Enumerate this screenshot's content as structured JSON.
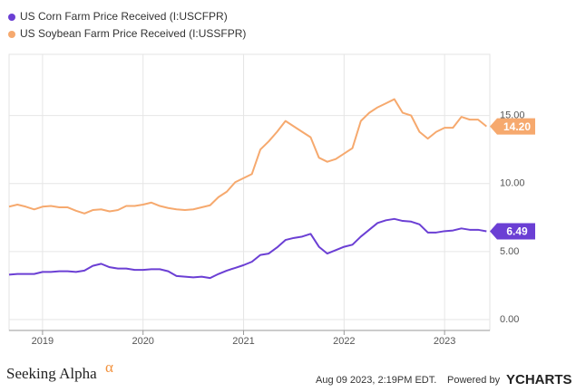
{
  "chart_data": {
    "type": "line",
    "categories_note_free": null,
    "x": [
      2018.667,
      2018.75,
      2018.833,
      2018.917,
      2019,
      2019.083,
      2019.167,
      2019.25,
      2019.333,
      2019.417,
      2019.5,
      2019.583,
      2019.667,
      2019.75,
      2019.833,
      2019.917,
      2020,
      2020.083,
      2020.167,
      2020.25,
      2020.333,
      2020.417,
      2020.5,
      2020.583,
      2020.667,
      2020.75,
      2020.833,
      2020.917,
      2021,
      2021.083,
      2021.167,
      2021.25,
      2021.333,
      2021.417,
      2021.5,
      2021.583,
      2021.667,
      2021.75,
      2021.833,
      2021.917,
      2022,
      2022.083,
      2022.167,
      2022.25,
      2022.333,
      2022.417,
      2022.5,
      2022.583,
      2022.667,
      2022.75,
      2022.833,
      2022.917,
      2023,
      2023.083,
      2023.167,
      2023.25,
      2023.333,
      2023.417
    ],
    "series": [
      {
        "name": "US Corn Farm Price Received (I:USCFPR)",
        "color": "#6b3fd4",
        "values": [
          3.3,
          3.35,
          3.35,
          3.35,
          3.5,
          3.5,
          3.55,
          3.55,
          3.5,
          3.6,
          3.95,
          4.1,
          3.85,
          3.75,
          3.75,
          3.65,
          3.65,
          3.7,
          3.7,
          3.55,
          3.2,
          3.15,
          3.1,
          3.15,
          3.05,
          3.35,
          3.6,
          3.8,
          4.0,
          4.25,
          4.75,
          4.85,
          5.3,
          5.85,
          6.0,
          6.1,
          6.3,
          5.35,
          4.85,
          5.1,
          5.35,
          5.5,
          6.1,
          6.6,
          7.1,
          7.3,
          7.4,
          7.25,
          7.2,
          7.0,
          6.4,
          6.4,
          6.5,
          6.55,
          6.7,
          6.6,
          6.6,
          6.49
        ],
        "value_labels": [
          null,
          null,
          null,
          null,
          null,
          null,
          null,
          null,
          null,
          null,
          null,
          null,
          null,
          null,
          null,
          null,
          null,
          null,
          null,
          null,
          null,
          null,
          null,
          null,
          null,
          null,
          null,
          null,
          null,
          null,
          null,
          null,
          null,
          null,
          null,
          null,
          null,
          null,
          null,
          null,
          null,
          null,
          null,
          null,
          null,
          null,
          null,
          null,
          null,
          null,
          null,
          null,
          null,
          null,
          null,
          null,
          null,
          "6.49"
        ]
      },
      {
        "name": "US Soybean Farm Price Received (I:USSFPR)",
        "color": "#f6a96e",
        "values": [
          8.3,
          8.45,
          8.3,
          8.1,
          8.3,
          8.35,
          8.25,
          8.25,
          8.0,
          7.8,
          8.05,
          8.1,
          7.95,
          8.05,
          8.35,
          8.35,
          8.45,
          8.6,
          8.35,
          8.2,
          8.1,
          8.05,
          8.1,
          8.25,
          8.4,
          9.0,
          9.4,
          10.1,
          10.4,
          10.7,
          12.5,
          13.1,
          13.8,
          14.6,
          14.2,
          13.8,
          13.4,
          11.9,
          11.6,
          11.8,
          12.2,
          12.6,
          14.6,
          15.2,
          15.6,
          15.9,
          16.2,
          15.2,
          15.0,
          13.8,
          13.3,
          13.8,
          14.1,
          14.1,
          14.9,
          14.7,
          14.7,
          14.2
        ],
        "value_labels": [
          null,
          null,
          null,
          null,
          null,
          null,
          null,
          null,
          null,
          null,
          null,
          null,
          null,
          null,
          null,
          null,
          null,
          null,
          null,
          null,
          null,
          null,
          null,
          null,
          null,
          null,
          null,
          null,
          null,
          null,
          null,
          null,
          null,
          null,
          null,
          null,
          null,
          null,
          null,
          null,
          null,
          null,
          null,
          null,
          null,
          null,
          null,
          null,
          null,
          null,
          null,
          null,
          null,
          null,
          null,
          null,
          null,
          "14.20"
        ]
      }
    ],
    "xlim": [
      2018.667,
      2023.45
    ],
    "xticks": [
      2019,
      2020,
      2021,
      2022,
      2023
    ],
    "ylim": [
      -0.8,
      19.5
    ],
    "yticks": [
      {
        "value": 0,
        "label": "0.00"
      },
      {
        "value": 5,
        "label": "5.00"
      },
      {
        "value": 10,
        "label": "10.00"
      },
      {
        "value": 15,
        "label": "15.00"
      }
    ],
    "grid": true
  },
  "footer": {
    "brand": "Seeking Alpha",
    "brand_symbol": "α",
    "timestamp": "Aug 09 2023, 2:19PM EDT.",
    "powered_by": "Powered by",
    "provider": "YCHARTS"
  }
}
